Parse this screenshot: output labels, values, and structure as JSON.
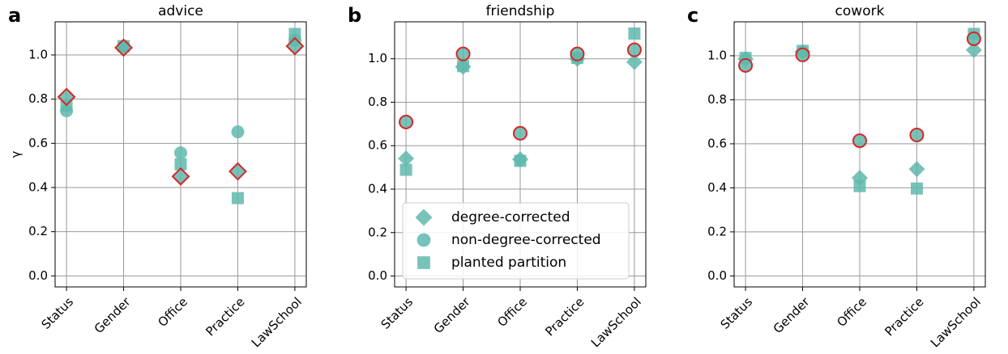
{
  "chart_data": [
    {
      "type": "scatter",
      "panel_label": "a",
      "title": "advice",
      "y_label": "γ",
      "categories": [
        "Status",
        "Gender",
        "Office",
        "Practice",
        "LawSchool"
      ],
      "series": [
        {
          "marker": "square",
          "color": "#5fb8ad",
          "values": [
            0.77,
            1.04,
            0.505,
            0.352,
            1.095
          ]
        },
        {
          "marker": "circle",
          "color": "#5fb8ad",
          "values": [
            0.747,
            1.04,
            0.557,
            0.652,
            1.066
          ]
        },
        {
          "marker": "diamond",
          "color": "#5fb8ad",
          "edgecolor": "#d62728",
          "values": [
            0.81,
            1.033,
            0.45,
            0.473,
            1.04
          ]
        }
      ],
      "ylim": [
        -0.05,
        1.15
      ],
      "yticks": [
        {
          "value": 0,
          "label": "0.0"
        },
        0.2,
        0.4,
        0.6,
        0.8,
        {
          "value": 1,
          "label": "1.0"
        }
      ],
      "grid": true
    },
    {
      "type": "scatter",
      "panel_label": "b",
      "title": "friendship",
      "categories": [
        "Status",
        "Gender",
        "Office",
        "Practice",
        "LawSchool"
      ],
      "series": [
        {
          "name": "degree-corrected",
          "marker": "diamond",
          "color": "#5fb8ad",
          "values": [
            0.541,
            0.963,
            0.537,
            1.0,
            0.985
          ]
        },
        {
          "name": "non-degree-corrected",
          "marker": "circle",
          "color": "#5fb8ad",
          "edgecolor": "#d62728",
          "values": [
            0.709,
            1.022,
            0.657,
            1.022,
            1.041
          ]
        },
        {
          "name": "planted partition",
          "marker": "square",
          "color": "#5fb8ad",
          "values": [
            0.489,
            0.966,
            0.53,
            1.004,
            1.116
          ]
        }
      ],
      "ylim": [
        -0.05,
        1.17
      ],
      "yticks": [
        {
          "value": 0,
          "label": "0.0"
        },
        0.2,
        0.4,
        0.6,
        0.8,
        {
          "value": 1,
          "label": "1.0"
        }
      ],
      "grid": true,
      "legend": "lower left"
    },
    {
      "type": "scatter",
      "panel_label": "c",
      "title": "cowork",
      "categories": [
        "Status",
        "Gender",
        "Office",
        "Practice",
        "LawSchool"
      ],
      "series": [
        {
          "marker": "diamond",
          "color": "#5fb8ad",
          "values": [
            0.985,
            1.018,
            0.445,
            0.485,
            1.026
          ]
        },
        {
          "marker": "square",
          "color": "#5fb8ad",
          "values": [
            0.99,
            1.022,
            0.408,
            0.397,
            1.099
          ]
        },
        {
          "marker": "circle",
          "color": "#5fb8ad",
          "edgecolor": "#d62728",
          "values": [
            0.956,
            1.004,
            0.614,
            0.64,
            1.077
          ]
        }
      ],
      "ylim": [
        -0.05,
        1.154
      ],
      "yticks": [
        {
          "value": 0,
          "label": "0.0"
        },
        0.2,
        0.4,
        0.6,
        0.8,
        {
          "value": 1,
          "label": "1.0"
        }
      ],
      "grid": true
    }
  ]
}
